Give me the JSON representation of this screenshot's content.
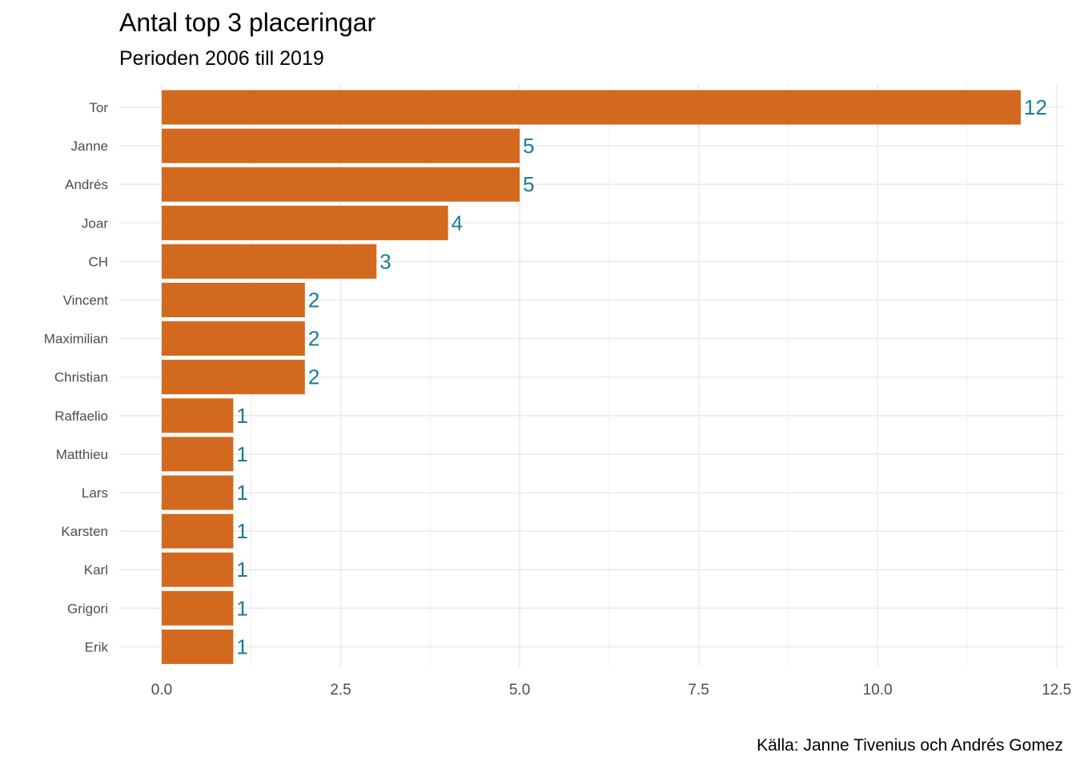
{
  "chart_data": {
    "type": "bar",
    "orientation": "horizontal",
    "title": "Antal top 3 placeringar",
    "subtitle": "Perioden 2006 till 2019",
    "caption": "Källa: Janne Tivenius och Andrés Gomez",
    "xlabel": "",
    "ylabel": "",
    "categories": [
      "Tor",
      "Janne",
      "Andrés",
      "Joar",
      "CH",
      "Vincent",
      "Maximilian",
      "Christian",
      "Raffaelio",
      "Matthieu",
      "Lars",
      "Karsten",
      "Karl",
      "Grigori",
      "Erik"
    ],
    "values": [
      12,
      5,
      5,
      4,
      3,
      2,
      2,
      2,
      1,
      1,
      1,
      1,
      1,
      1,
      1
    ],
    "xlim": [
      0,
      12.5
    ],
    "xticks": [
      0,
      2.5,
      5,
      7.5,
      10,
      12.5
    ],
    "xtick_labels": [
      "0.0",
      "2.5",
      "5.0",
      "7.5",
      "10.0",
      "12.5"
    ],
    "grid": true,
    "legend": "none",
    "colors": {
      "bar": "#d2691e",
      "label": "#1a7a9a",
      "grid": "#ebebeb",
      "tick_text": "#4d4d4d"
    }
  }
}
